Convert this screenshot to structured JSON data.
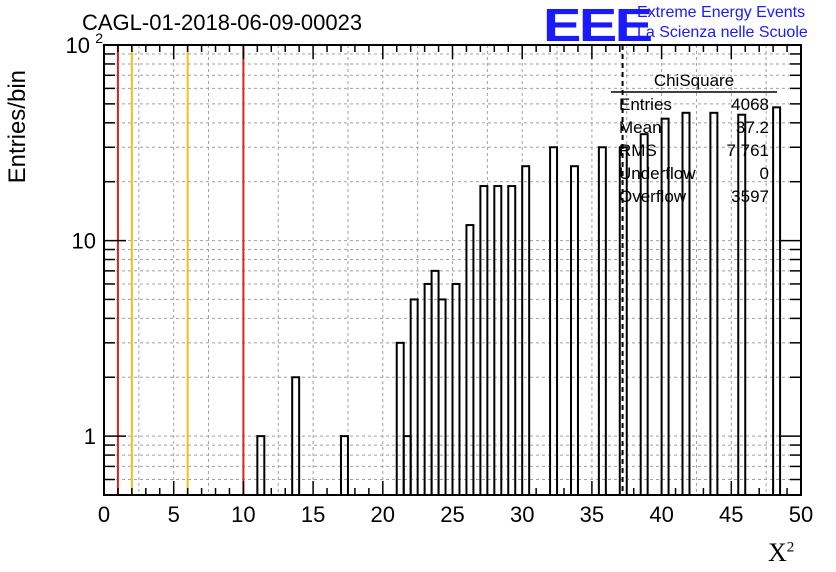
{
  "header": {
    "run_title": "CAGL-01-2018-06-09-00023",
    "logo_text": "EEE",
    "logo_line1": "Extreme Energy Events",
    "logo_line2": "La Scienza nelle Scuole"
  },
  "colors": {
    "logo": "#1a1aff",
    "red_lines": "#dd2222",
    "yellow_lines": "#f0c020",
    "grid": "#a0a0a0"
  },
  "chart_data": {
    "type": "bar",
    "ylabel": "Entries/bin",
    "xlabel": "X",
    "xlabel_sup": "2",
    "xlim": [
      0,
      50
    ],
    "ylim": [
      0.5,
      100
    ],
    "yscale": "log",
    "grid": true,
    "x_ticks": [
      "0",
      "5",
      "10",
      "15",
      "20",
      "25",
      "30",
      "35",
      "40",
      "45",
      "50"
    ],
    "y_ticks": [
      {
        "value": 1,
        "label": "1"
      },
      {
        "value": 10,
        "label": "10"
      },
      {
        "value": 100,
        "label": "10",
        "sup": "2"
      }
    ],
    "bin_width": 0.5,
    "bins": [
      {
        "x": 11.0,
        "y": 1
      },
      {
        "x": 13.5,
        "y": 2
      },
      {
        "x": 17.0,
        "y": 1
      },
      {
        "x": 21.0,
        "y": 3
      },
      {
        "x": 21.5,
        "y": 1
      },
      {
        "x": 22.0,
        "y": 5
      },
      {
        "x": 23.0,
        "y": 6
      },
      {
        "x": 23.5,
        "y": 7
      },
      {
        "x": 24.0,
        "y": 5
      },
      {
        "x": 25.0,
        "y": 6
      },
      {
        "x": 26.0,
        "y": 12
      },
      {
        "x": 27.0,
        "y": 19
      },
      {
        "x": 28.0,
        "y": 19
      },
      {
        "x": 29.0,
        "y": 19
      },
      {
        "x": 30.0,
        "y": 24
      },
      {
        "x": 32.0,
        "y": 30
      },
      {
        "x": 33.5,
        "y": 24
      },
      {
        "x": 35.5,
        "y": 30
      },
      {
        "x": 37.0,
        "y": 30
      },
      {
        "x": 38.5,
        "y": 35
      },
      {
        "x": 40.0,
        "y": 42
      },
      {
        "x": 41.5,
        "y": 45
      },
      {
        "x": 43.5,
        "y": 45
      },
      {
        "x": 45.5,
        "y": 44
      },
      {
        "x": 48.0,
        "y": 48
      }
    ],
    "vertical_lines": [
      {
        "x": 1,
        "color": "red"
      },
      {
        "x": 2,
        "color": "yellow"
      },
      {
        "x": 6,
        "color": "yellow"
      },
      {
        "x": 10,
        "color": "red"
      },
      {
        "x": 37.2,
        "color": "black",
        "style": "dashed"
      }
    ],
    "stats_box": {
      "title": "ChiSquare",
      "rows": [
        {
          "label": "Entries",
          "value": "4068"
        },
        {
          "label": "Mean",
          "value": "37.2"
        },
        {
          "label": "RMS",
          "value": "7.761"
        },
        {
          "label": "Underflow",
          "value": "0"
        },
        {
          "label": "Overflow",
          "value": "3597"
        }
      ]
    }
  }
}
